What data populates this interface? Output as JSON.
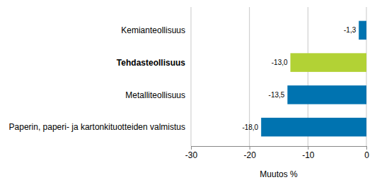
{
  "chart_data": {
    "type": "bar",
    "orientation": "horizontal",
    "categories": [
      "Kemianteollisuus",
      "Tehdasteollisuus",
      "Metalliteollisuus",
      "Paperin, paperi- ja kartonkituotteiden valmistus"
    ],
    "values": [
      -1.3,
      -13.0,
      -13.5,
      -18.0
    ],
    "value_labels": [
      "-1,3",
      "-13,0",
      "-13,5",
      "-18,0"
    ],
    "colors": [
      "#0073b0",
      "#b2d235",
      "#0073b0",
      "#0073b0"
    ],
    "x_label": "Muutos %",
    "xlim": [
      -30,
      0
    ],
    "xticks": [
      -30,
      -20,
      -10,
      0
    ],
    "grid": true,
    "data_labels": true
  }
}
